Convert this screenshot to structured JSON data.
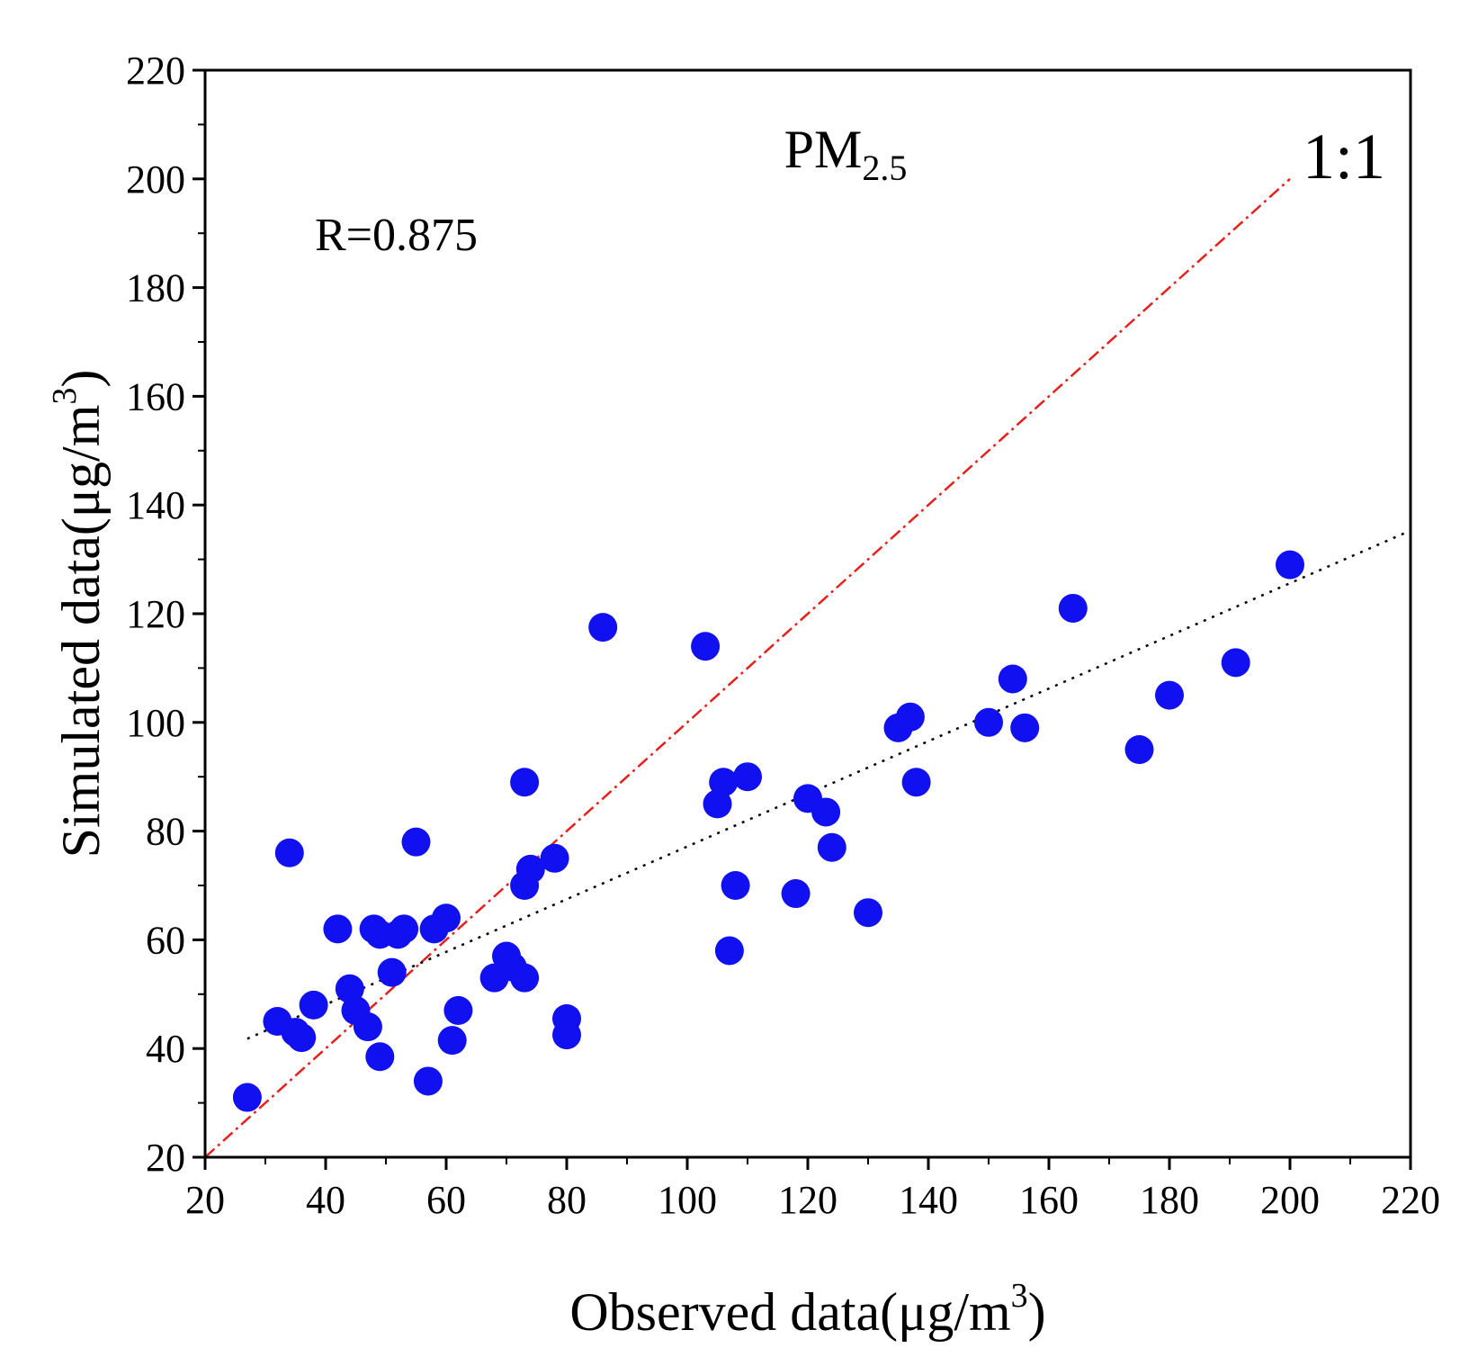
{
  "chart_data": {
    "type": "scatter",
    "title": "PM",
    "title_subscript": "2.5",
    "xlabel_main": "Observed data(μg/m",
    "xlabel_sup": "3",
    "xlabel_close": ")",
    "ylabel_main": "Simulated data(μg/m",
    "ylabel_sup": "3",
    "ylabel_close": ")",
    "xlim": [
      20,
      220
    ],
    "ylim": [
      20,
      220
    ],
    "xticks": [
      "20",
      "40",
      "60",
      "80",
      "100",
      "120",
      "140",
      "160",
      "180",
      "200",
      "220"
    ],
    "yticks": [
      "20",
      "40",
      "60",
      "80",
      "100",
      "120",
      "140",
      "160",
      "180",
      "200",
      "220"
    ],
    "annotation_r": "R=0.875",
    "annotation_ratio": "1:1",
    "reference_line": {
      "name": "1:1",
      "x": [
        20,
        200
      ],
      "y": [
        20,
        200
      ],
      "color": "#e8201c"
    },
    "fit_line": {
      "name": "linear fit",
      "x": [
        27,
        220
      ],
      "y": [
        41.8,
        135.3
      ],
      "color": "#000000"
    },
    "marker_color": "#1010f0",
    "points": [
      [
        27,
        31
      ],
      [
        32,
        45
      ],
      [
        35,
        43
      ],
      [
        36,
        42
      ],
      [
        38,
        48
      ],
      [
        34,
        76
      ],
      [
        42,
        62
      ],
      [
        44,
        51
      ],
      [
        45,
        47
      ],
      [
        47,
        44
      ],
      [
        48,
        62
      ],
      [
        49,
        38.5
      ],
      [
        49,
        61
      ],
      [
        51,
        54
      ],
      [
        52,
        61
      ],
      [
        53,
        62
      ],
      [
        55,
        78
      ],
      [
        57,
        34
      ],
      [
        58,
        62
      ],
      [
        60,
        64
      ],
      [
        61,
        41.5
      ],
      [
        62,
        47
      ],
      [
        68,
        53
      ],
      [
        70,
        57
      ],
      [
        71,
        55
      ],
      [
        73,
        53
      ],
      [
        73,
        89
      ],
      [
        73,
        70
      ],
      [
        74,
        73
      ],
      [
        78,
        75
      ],
      [
        80,
        45.5
      ],
      [
        80,
        42.5
      ],
      [
        86,
        117.5
      ],
      [
        103,
        114
      ],
      [
        105,
        85
      ],
      [
        106,
        89
      ],
      [
        107,
        58
      ],
      [
        108,
        70
      ],
      [
        110,
        90
      ],
      [
        118,
        68.5
      ],
      [
        120,
        86
      ],
      [
        123,
        83.5
      ],
      [
        124,
        77
      ],
      [
        130,
        65
      ],
      [
        135,
        99
      ],
      [
        137,
        101
      ],
      [
        138,
        89
      ],
      [
        150,
        100
      ],
      [
        154,
        108
      ],
      [
        156,
        99
      ],
      [
        164,
        121
      ],
      [
        175,
        95
      ],
      [
        180,
        105
      ],
      [
        191,
        111
      ],
      [
        200,
        129
      ]
    ]
  }
}
